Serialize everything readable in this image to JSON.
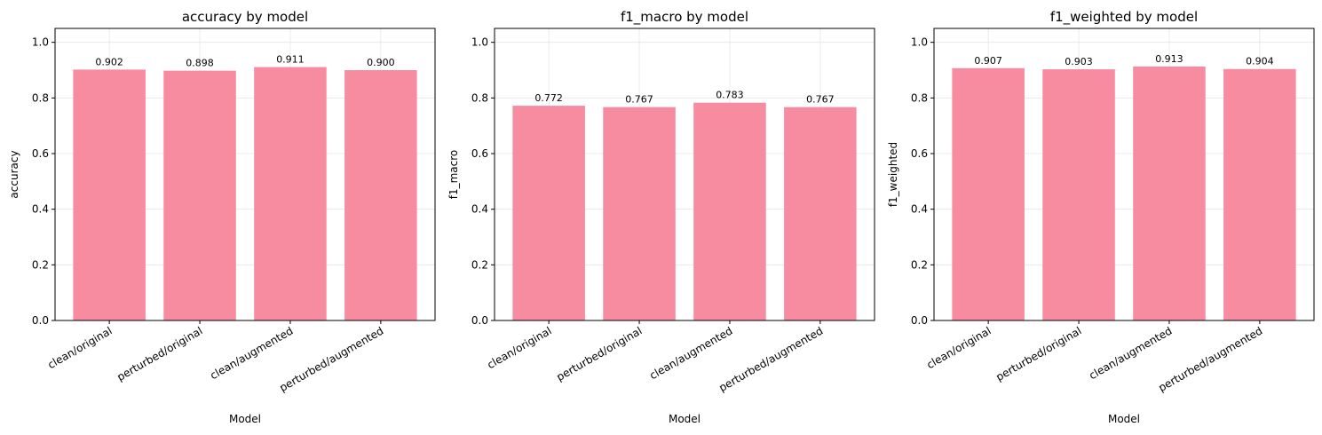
{
  "chart_data": [
    {
      "type": "bar",
      "title": "accuracy by model",
      "xlabel": "Model",
      "ylabel": "accuracy",
      "categories": [
        "clean/original",
        "perturbed/original",
        "clean/augmented",
        "perturbed/augmented"
      ],
      "values": [
        0.902,
        0.898,
        0.911,
        0.9
      ],
      "value_labels": [
        "0.902",
        "0.898",
        "0.911",
        "0.900"
      ],
      "ylim": [
        0,
        1.05
      ],
      "yticks": [
        0.0,
        0.2,
        0.4,
        0.6,
        0.8,
        1.0
      ],
      "ytick_labels": [
        "0.0",
        "0.2",
        "0.4",
        "0.6",
        "0.8",
        "1.0"
      ],
      "grid": true,
      "bar_color": "#f78ca0"
    },
    {
      "type": "bar",
      "title": "f1_macro by model",
      "xlabel": "Model",
      "ylabel": "f1_macro",
      "categories": [
        "clean/original",
        "perturbed/original",
        "clean/augmented",
        "perturbed/augmented"
      ],
      "values": [
        0.772,
        0.767,
        0.783,
        0.767
      ],
      "value_labels": [
        "0.772",
        "0.767",
        "0.783",
        "0.767"
      ],
      "ylim": [
        0,
        1.05
      ],
      "yticks": [
        0.0,
        0.2,
        0.4,
        0.6,
        0.8,
        1.0
      ],
      "ytick_labels": [
        "0.0",
        "0.2",
        "0.4",
        "0.6",
        "0.8",
        "1.0"
      ],
      "grid": true,
      "bar_color": "#f78ca0"
    },
    {
      "type": "bar",
      "title": "f1_weighted by model",
      "xlabel": "Model",
      "ylabel": "f1_weighted",
      "categories": [
        "clean/original",
        "perturbed/original",
        "clean/augmented",
        "perturbed/augmented"
      ],
      "values": [
        0.907,
        0.903,
        0.913,
        0.904
      ],
      "value_labels": [
        "0.907",
        "0.903",
        "0.913",
        "0.904"
      ],
      "ylim": [
        0,
        1.05
      ],
      "yticks": [
        0.0,
        0.2,
        0.4,
        0.6,
        0.8,
        1.0
      ],
      "ytick_labels": [
        "0.0",
        "0.2",
        "0.4",
        "0.6",
        "0.8",
        "1.0"
      ],
      "grid": true,
      "bar_color": "#f78ca0"
    }
  ]
}
